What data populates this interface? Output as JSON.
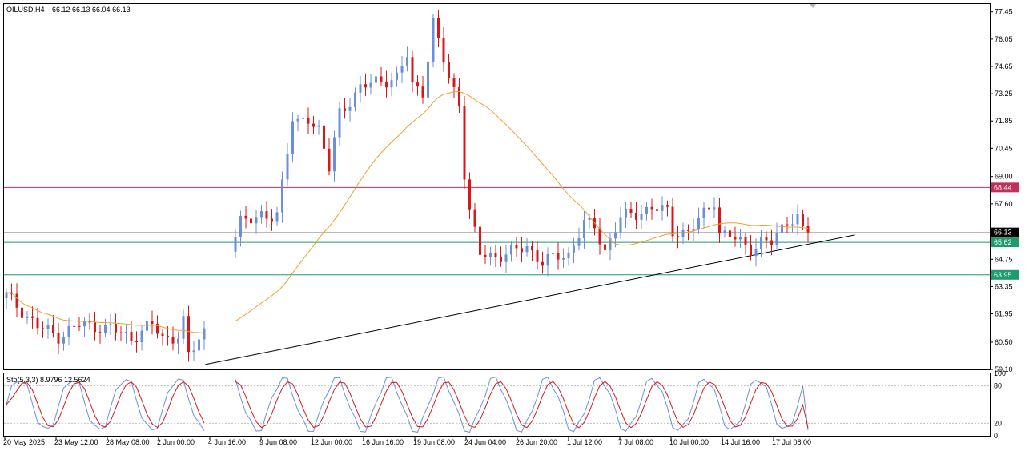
{
  "header": {
    "symbol_text": "OILUSD,H4",
    "ohlc_text": "66.12 66.13 66.04 66.13"
  },
  "indicator": {
    "label_text": "Sto(5,3,3) 8.9796 12.5624",
    "levels": [
      100,
      80,
      20,
      0
    ]
  },
  "colors": {
    "bull": "#6b8fd8",
    "bear": "#d81818",
    "ma": "#f0a030",
    "resistance": "#c0305a",
    "support": "#1f9a6a",
    "current_price_line": "#b0b0b0",
    "trendline": "#000000",
    "stoch_main": "#6b8fd8",
    "stoch_signal": "#d81818"
  },
  "chart_data": {
    "type": "candlestick",
    "symbol": "OILUSD",
    "timeframe": "H4",
    "y_ticks": [
      77.45,
      76.05,
      74.65,
      73.25,
      71.85,
      70.45,
      69.0,
      67.6,
      66.2,
      64.75,
      63.35,
      61.95,
      60.5,
      59.1
    ],
    "ylim": [
      59.1,
      77.85
    ],
    "x_tick_labels": [
      "20 May 2025",
      "23 May 12:00",
      "28 May 08:00",
      "2 Jun 00:00",
      "4 Jun 16:00",
      "9 Jun 08:00",
      "12 Jun 00:00",
      "16 Jun 16:00",
      "19 Jun 08:00",
      "24 Jun 04:00",
      "26 Jun 20:00",
      "1 Jul 12:00",
      "7 Jul 08:00",
      "10 Jul 00:00",
      "14 Jul 16:00",
      "17 Jul 08:00"
    ],
    "price_labels": [
      {
        "text": "68.44",
        "value": 68.44,
        "kind": "resistance"
      },
      {
        "text": "66.13",
        "value": 66.13,
        "kind": "current"
      },
      {
        "text": "65.62",
        "value": 65.62,
        "kind": "support"
      },
      {
        "text": "63.95",
        "value": 63.95,
        "kind": "support"
      }
    ],
    "candle_anchors": [
      [
        0,
        62.9
      ],
      [
        6,
        61.3
      ],
      [
        10,
        60.8
      ],
      [
        14,
        61.4
      ],
      [
        20,
        61.2
      ],
      [
        24,
        60.7
      ],
      [
        28,
        61.4
      ],
      [
        30,
        60.7
      ],
      [
        33,
        60.8
      ],
      [
        34,
        61.5
      ],
      [
        35,
        59.8
      ],
      [
        38,
        61.1
      ],
      [
        45,
        66.9
      ],
      [
        50,
        66.8
      ],
      [
        52,
        67.2
      ],
      [
        55,
        71.9
      ],
      [
        56,
        71.6
      ],
      [
        58,
        72.0
      ],
      [
        60,
        71.5
      ],
      [
        62,
        69.4
      ],
      [
        64,
        72.2
      ],
      [
        68,
        73.6
      ],
      [
        72,
        73.9
      ],
      [
        75,
        74.1
      ],
      [
        77,
        75.2
      ],
      [
        78,
        73.6
      ],
      [
        80,
        73.4
      ],
      [
        82,
        76.9
      ],
      [
        85,
        74.0
      ],
      [
        87,
        72.8
      ],
      [
        88,
        69.2
      ],
      [
        89,
        67.2
      ],
      [
        91,
        65.0
      ],
      [
        94,
        64.9
      ],
      [
        97,
        65.1
      ],
      [
        100,
        65.4
      ],
      [
        103,
        64.6
      ],
      [
        106,
        64.9
      ],
      [
        108,
        65.0
      ],
      [
        111,
        66.6
      ],
      [
        113,
        66.4
      ],
      [
        115,
        65.2
      ],
      [
        118,
        66.9
      ],
      [
        121,
        67.1
      ],
      [
        124,
        67.4
      ],
      [
        127,
        67.2
      ],
      [
        128,
        66.2
      ],
      [
        131,
        66.1
      ],
      [
        134,
        67.1
      ],
      [
        136,
        67.8
      ],
      [
        137,
        66.1
      ],
      [
        140,
        65.8
      ],
      [
        143,
        65.3
      ],
      [
        145,
        65.6
      ],
      [
        147,
        65.6
      ],
      [
        150,
        66.8
      ],
      [
        152,
        66.9
      ],
      [
        153,
        66.2
      ],
      [
        154,
        66.13
      ]
    ],
    "trendline": [
      [
        38.2,
        59.35
      ],
      [
        163,
        66.0
      ]
    ],
    "stochastic": {
      "name": "Sto(5,3,3)",
      "main_value": 8.9796,
      "signal_value": 12.5624,
      "levels": [
        80,
        20
      ]
    }
  }
}
